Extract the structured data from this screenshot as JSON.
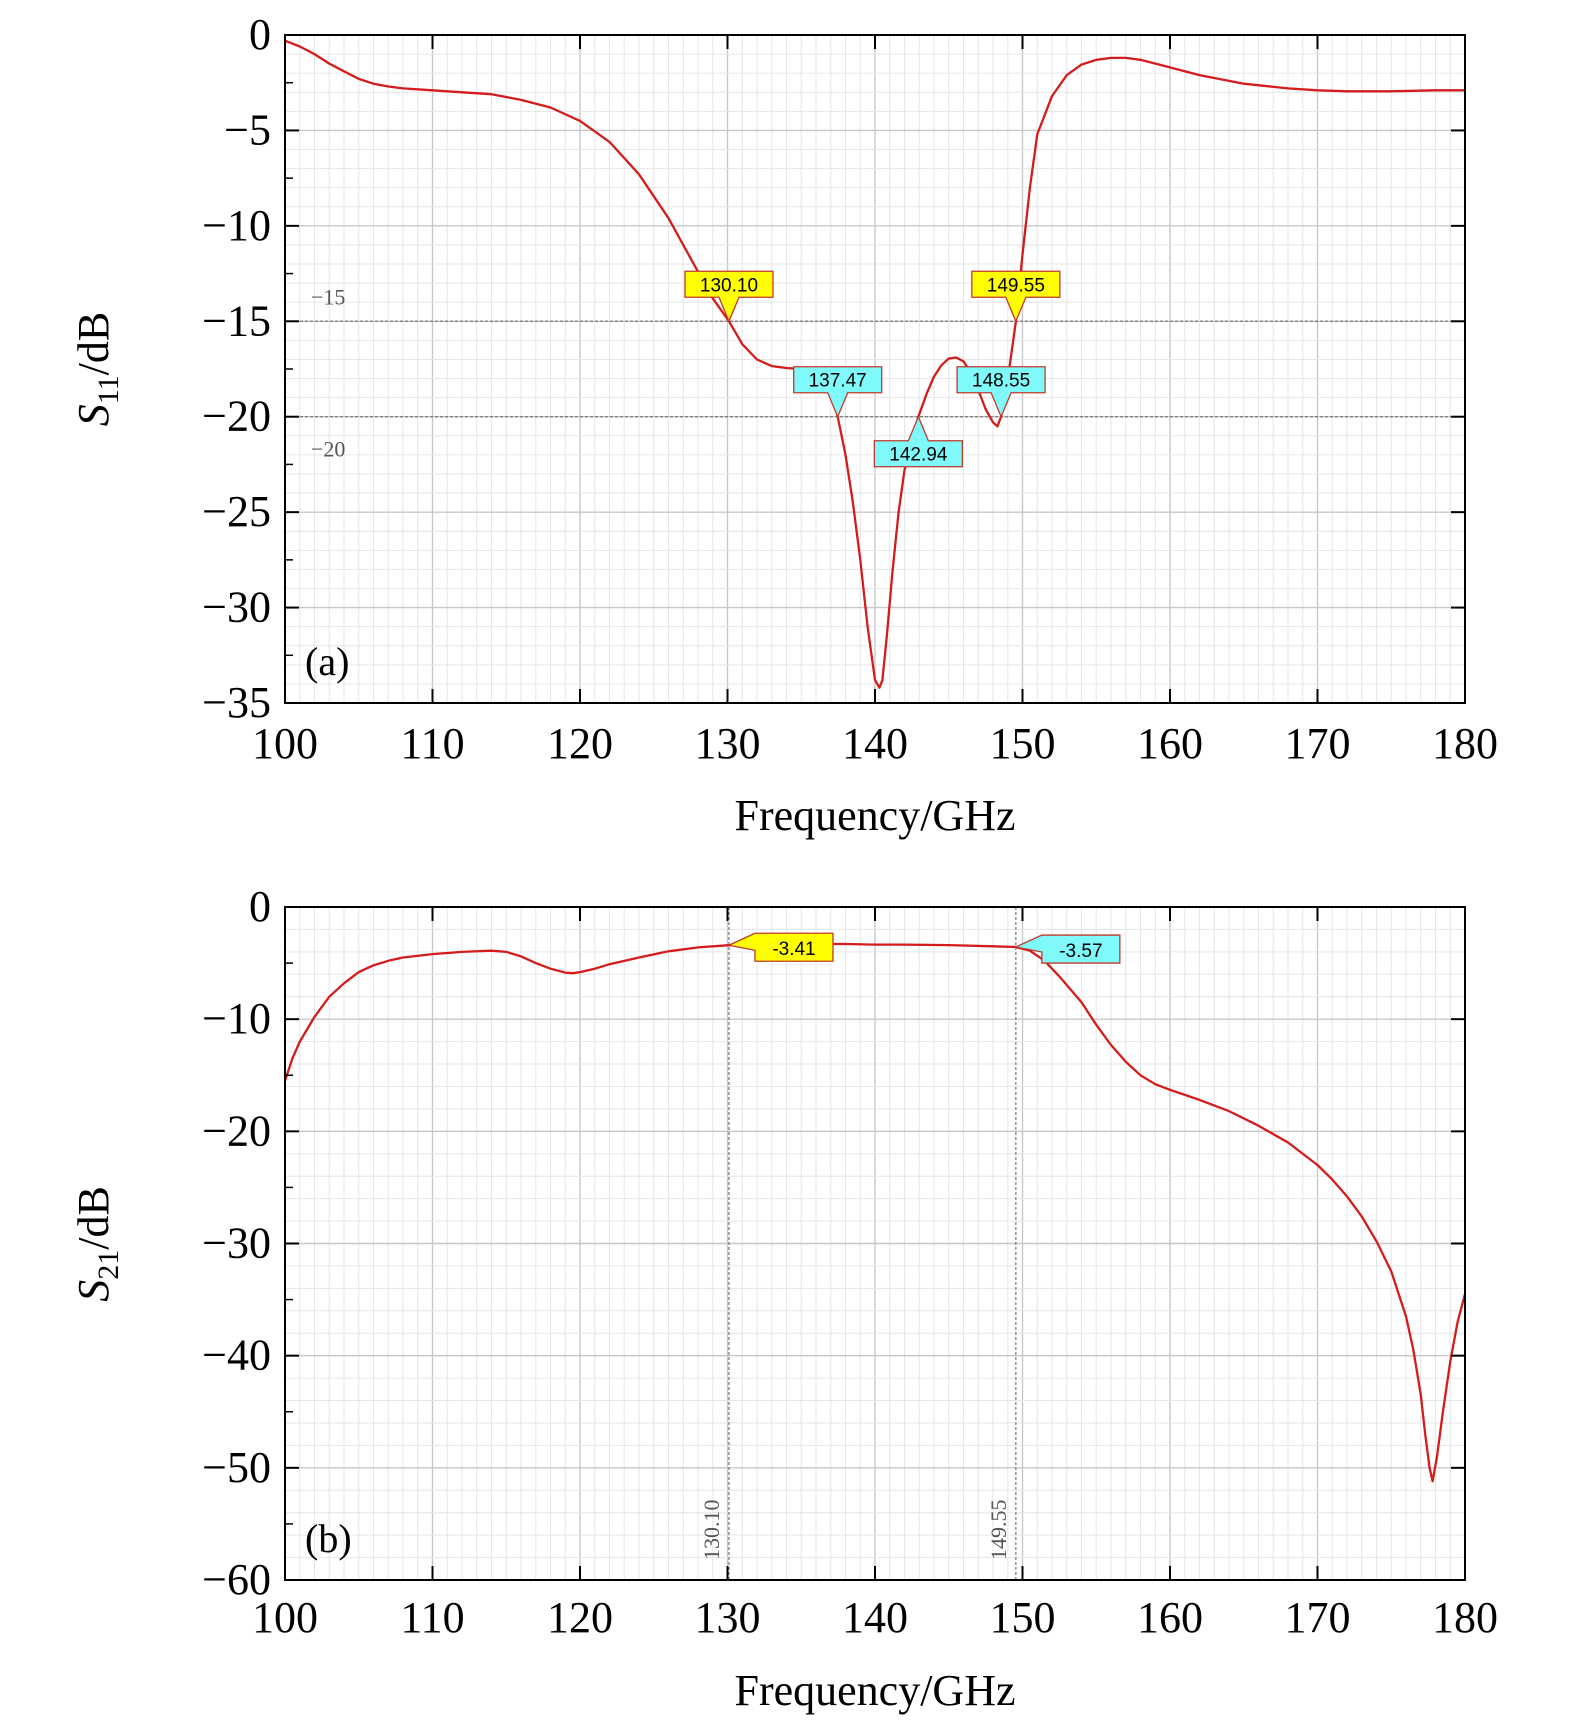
{
  "chart_data": [
    {
      "type": "line",
      "panel_label": "(a)",
      "xlabel": "Frequency/GHz",
      "ylabel_main": "S",
      "ylabel_sub": "11",
      "ylabel_unit": "/dB",
      "xlim": [
        100,
        180
      ],
      "ylim": [
        -35,
        0
      ],
      "xticks": [
        100,
        110,
        120,
        130,
        140,
        150,
        160,
        170,
        180
      ],
      "yticks": [
        0,
        -5,
        -10,
        -15,
        -20,
        -25,
        -30,
        -35
      ],
      "ytick_labels": [
        "0",
        "−5",
        "−10",
        "−15",
        "−20",
        "−25",
        "−30",
        "−35"
      ],
      "xtick_labels": [
        "100",
        "110",
        "120",
        "130",
        "140",
        "150",
        "160",
        "170",
        "180"
      ],
      "grid": true,
      "color": "#d41c1c",
      "reference_lines": [
        {
          "orientation": "horizontal",
          "value": -15,
          "label": "−15"
        },
        {
          "orientation": "horizontal",
          "value": -20,
          "label": "−20"
        }
      ],
      "markers": [
        {
          "x": 130.1,
          "y": -15,
          "label": "130.10",
          "color": "#ffff00",
          "direction": "down"
        },
        {
          "x": 137.47,
          "y": -20,
          "label": "137.47",
          "color": "#7ff9f9",
          "direction": "down"
        },
        {
          "x": 142.94,
          "y": -20,
          "label": "142.94",
          "color": "#7ff9f9",
          "direction": "up"
        },
        {
          "x": 148.55,
          "y": -20,
          "label": "148.55",
          "color": "#7ff9f9",
          "direction": "down"
        },
        {
          "x": 149.55,
          "y": -15,
          "label": "149.55",
          "color": "#ffff00",
          "direction": "down"
        }
      ],
      "series": [
        {
          "name": "S11",
          "x": [
            100,
            101,
            102,
            103,
            104,
            105,
            106,
            107,
            108,
            110,
            112,
            114,
            116,
            118,
            120,
            122,
            124,
            126,
            128,
            129,
            130.1,
            131,
            132,
            133,
            134,
            135,
            136,
            137,
            137.47,
            138,
            138.5,
            139,
            139.5,
            140,
            140.3,
            140.5,
            140.8,
            141.2,
            141.6,
            142,
            142.5,
            142.94,
            143.5,
            144,
            144.5,
            145,
            145.5,
            146,
            146.5,
            147,
            147.5,
            148,
            148.3,
            148.55,
            148.8,
            149.1,
            149.55,
            150,
            150.5,
            151,
            152,
            153,
            154,
            155,
            156,
            157,
            158,
            160,
            162,
            165,
            168,
            170,
            172,
            175,
            178,
            180
          ],
          "y": [
            -0.3,
            -0.6,
            -1.0,
            -1.5,
            -1.9,
            -2.3,
            -2.55,
            -2.7,
            -2.8,
            -2.9,
            -3.0,
            -3.1,
            -3.4,
            -3.8,
            -4.5,
            -5.6,
            -7.3,
            -9.6,
            -12.4,
            -13.8,
            -15.0,
            -16.2,
            -17.0,
            -17.35,
            -17.45,
            -17.5,
            -17.7,
            -18.6,
            -20.0,
            -22.0,
            -24.5,
            -27.5,
            -31.0,
            -33.8,
            -34.2,
            -33.8,
            -31.5,
            -28.0,
            -25.0,
            -22.8,
            -21.2,
            -20.0,
            -18.8,
            -17.9,
            -17.3,
            -16.95,
            -16.9,
            -17.1,
            -17.7,
            -18.6,
            -19.6,
            -20.3,
            -20.5,
            -20.0,
            -19.0,
            -17.5,
            -15.0,
            -11.5,
            -8.0,
            -5.2,
            -3.2,
            -2.1,
            -1.55,
            -1.3,
            -1.2,
            -1.2,
            -1.3,
            -1.7,
            -2.1,
            -2.55,
            -2.8,
            -2.9,
            -2.95,
            -2.95,
            -2.9,
            -2.9
          ]
        }
      ]
    },
    {
      "type": "line",
      "panel_label": "(b)",
      "xlabel": "Frequency/GHz",
      "ylabel_main": "S",
      "ylabel_sub": "21",
      "ylabel_unit": "/dB",
      "xlim": [
        100,
        180
      ],
      "ylim": [
        -60,
        0
      ],
      "xticks": [
        100,
        110,
        120,
        130,
        140,
        150,
        160,
        170,
        180
      ],
      "yticks": [
        0,
        -10,
        -20,
        -30,
        -40,
        -50,
        -60
      ],
      "ytick_labels": [
        "0",
        "−10",
        "−20",
        "−30",
        "−40",
        "−50",
        "−60"
      ],
      "xtick_labels": [
        "100",
        "110",
        "120",
        "130",
        "140",
        "150",
        "160",
        "170",
        "180"
      ],
      "grid": true,
      "color": "#d41c1c",
      "reference_lines": [
        {
          "orientation": "vertical",
          "value": 130.1,
          "label": "130.10"
        },
        {
          "orientation": "vertical",
          "value": 149.55,
          "label": "149.55"
        }
      ],
      "markers": [
        {
          "x": 130.1,
          "y": -3.41,
          "label": "-3.41",
          "color": "#ffff00",
          "direction": "left"
        },
        {
          "x": 149.55,
          "y": -3.57,
          "label": "-3.57",
          "color": "#7ff9f9",
          "direction": "left"
        }
      ],
      "series": [
        {
          "name": "S21",
          "x": [
            100,
            100.5,
            101,
            102,
            103,
            104,
            105,
            106,
            107,
            108,
            110,
            112,
            114,
            115,
            116,
            117,
            118,
            119,
            119.5,
            120,
            121,
            122,
            124,
            126,
            128,
            130.1,
            132,
            135,
            138,
            140,
            142,
            145,
            148,
            149.55,
            150.5,
            151.5,
            152.5,
            154,
            155,
            156,
            157,
            158,
            159,
            160,
            162,
            164,
            166,
            168,
            170,
            171,
            172,
            173,
            174,
            175,
            176,
            176.5,
            177,
            177.3,
            177.6,
            177.8,
            178.1,
            178.5,
            179,
            179.5,
            180
          ],
          "y": [
            -15.5,
            -13.5,
            -12.0,
            -9.8,
            -8.0,
            -6.8,
            -5.8,
            -5.2,
            -4.8,
            -4.5,
            -4.2,
            -4.0,
            -3.9,
            -4.0,
            -4.4,
            -5.0,
            -5.5,
            -5.85,
            -5.9,
            -5.8,
            -5.5,
            -5.1,
            -4.5,
            -3.95,
            -3.6,
            -3.41,
            -3.35,
            -3.3,
            -3.3,
            -3.35,
            -3.35,
            -3.4,
            -3.5,
            -3.57,
            -3.9,
            -4.8,
            -6.2,
            -8.5,
            -10.5,
            -12.3,
            -13.8,
            -15.0,
            -15.8,
            -16.3,
            -17.2,
            -18.2,
            -19.5,
            -21.0,
            -23.0,
            -24.3,
            -25.8,
            -27.6,
            -29.8,
            -32.5,
            -36.5,
            -39.5,
            -43.5,
            -47.0,
            -50.0,
            -51.2,
            -49.0,
            -45.0,
            -40.5,
            -37.0,
            -34.5
          ]
        }
      ]
    }
  ]
}
